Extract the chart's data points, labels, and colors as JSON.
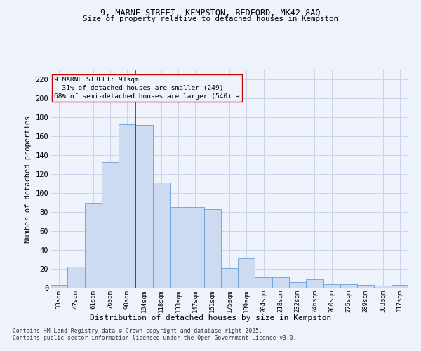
{
  "title1": "9, MARNE STREET, KEMPSTON, BEDFORD, MK42 8AQ",
  "title2": "Size of property relative to detached houses in Kempston",
  "xlabel": "Distribution of detached houses by size in Kempston",
  "ylabel": "Number of detached properties",
  "bar_values": [
    3,
    22,
    90,
    133,
    173,
    172,
    111,
    85,
    85,
    83,
    21,
    31,
    11,
    11,
    6,
    9,
    4,
    4,
    3,
    2,
    3
  ],
  "bin_labels": [
    "33sqm",
    "47sqm",
    "61sqm",
    "76sqm",
    "90sqm",
    "104sqm",
    "118sqm",
    "133sqm",
    "147sqm",
    "161sqm",
    "175sqm",
    "189sqm",
    "204sqm",
    "218sqm",
    "232sqm",
    "246sqm",
    "260sqm",
    "275sqm",
    "289sqm",
    "303sqm",
    "317sqm"
  ],
  "bar_color": "#ccdaf2",
  "bar_edge_color": "#6a9fd8",
  "bar_edge_width": 0.6,
  "vline_x": 4.5,
  "vline_color": "#cc0000",
  "annotation_line1": "9 MARNE STREET: 91sqm",
  "annotation_line2": "← 31% of detached houses are smaller (249)",
  "annotation_line3": "68% of semi-detached houses are larger (540) →",
  "bg_color": "#eef2fb",
  "grid_color": "#c8d4ea",
  "yticks": [
    0,
    20,
    40,
    60,
    80,
    100,
    120,
    140,
    160,
    180,
    200,
    220
  ],
  "ylim": [
    0,
    230
  ],
  "footer1": "Contains HM Land Registry data © Crown copyright and database right 2025.",
  "footer2": "Contains public sector information licensed under the Open Government Licence v3.0."
}
